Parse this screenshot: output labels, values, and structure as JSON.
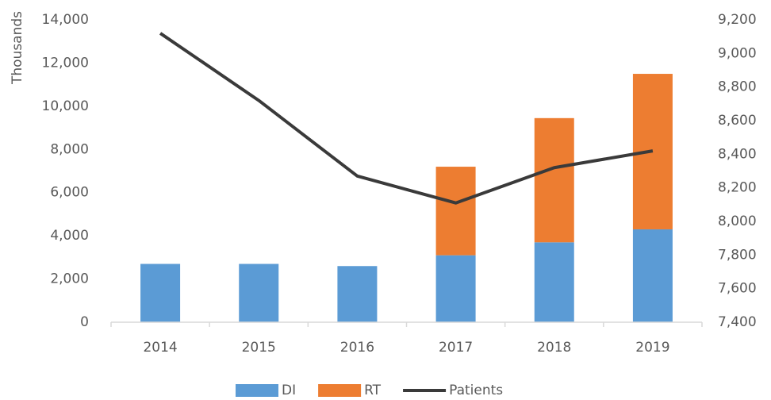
{
  "chart_data": {
    "type": "bar",
    "y_label": "Thousands",
    "categories": [
      "2014",
      "2015",
      "2016",
      "2017",
      "2018",
      "2019"
    ],
    "series": [
      {
        "name": "DI",
        "color": "#5b9bd5",
        "values": [
          2700,
          2700,
          2600,
          3100,
          3700,
          4300
        ]
      },
      {
        "name": "RT",
        "color": "#ed7d31",
        "values": [
          0,
          0,
          0,
          4100,
          5750,
          7200
        ]
      },
      {
        "name": "Patients",
        "color": "#3a3a3a",
        "type": "line",
        "axis": "y2",
        "values": [
          9120,
          8720,
          8270,
          8110,
          8320,
          8420
        ]
      }
    ],
    "stacked": true,
    "ylim": [
      0,
      14000
    ],
    "yticks": [
      0,
      {
        "value": 2000,
        "label": "2,000"
      },
      {
        "value": 4000,
        "label": "4,000"
      },
      {
        "value": 6000,
        "label": "6,000"
      },
      {
        "value": 8000,
        "label": "8,000"
      },
      {
        "value": 10000,
        "label": "10,000"
      },
      {
        "value": 12000,
        "label": "12,000"
      },
      {
        "value": 14000,
        "label": "14,000"
      }
    ],
    "y2lim": [
      7400,
      9200
    ],
    "y2ticks": [
      {
        "value": 7400,
        "label": "7,400"
      },
      {
        "value": 7600,
        "label": "7,600"
      },
      {
        "value": 7800,
        "label": "7,800"
      },
      {
        "value": 8000,
        "label": "8,000"
      },
      {
        "value": 8200,
        "label": "8,200"
      },
      {
        "value": 8400,
        "label": "8,400"
      },
      {
        "value": 8600,
        "label": "8,600"
      },
      {
        "value": 8800,
        "label": "8,800"
      },
      {
        "value": 9000,
        "label": "9,000"
      },
      {
        "value": 9200,
        "label": "9,200"
      }
    ],
    "legend": "bottom"
  }
}
